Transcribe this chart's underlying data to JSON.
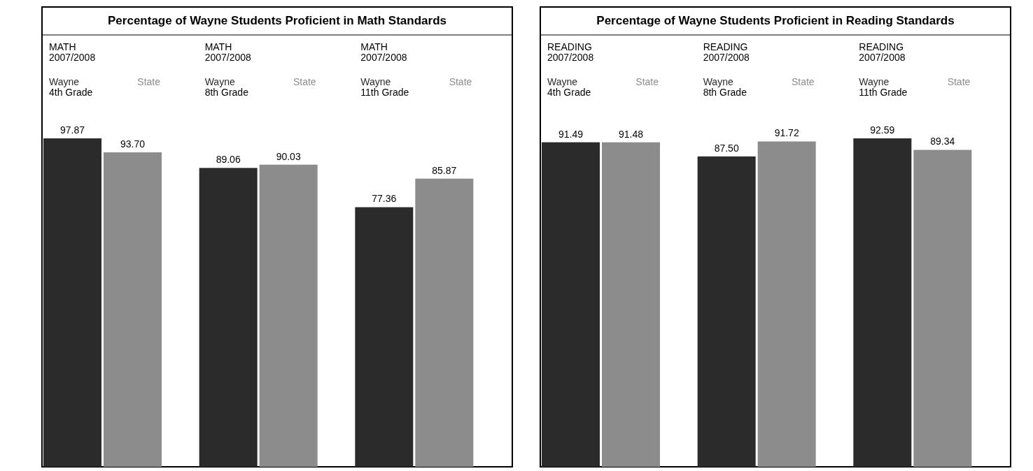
{
  "chart_data": [
    {
      "type": "bar",
      "title": "Percentage of Wayne Students Proficient in Math Standards",
      "categories": [
        "4th Grade",
        "8th Grade",
        "11th Grade"
      ],
      "series": [
        {
          "name": "Wayne",
          "color": "#2b2b2b",
          "values": [
            97.87,
            89.06,
            77.36
          ],
          "value_labels": [
            "97.87",
            "89.06",
            "77.36"
          ]
        },
        {
          "name": "State",
          "color": "#8c8c8c",
          "values": [
            93.7,
            90.03,
            85.87
          ],
          "value_labels": [
            "93.70",
            "90.03",
            "85.87"
          ]
        }
      ],
      "annotations": [
        "MATH\n2007/2008",
        "MATH\n2007/2008",
        "MATH\n2007/2008"
      ],
      "legend": false,
      "grid": false
    },
    {
      "type": "bar",
      "title": "Percentage of Wayne Students Proficient in Reading Standards",
      "categories": [
        "4th Grade",
        "8th Grade",
        "11th Grade"
      ],
      "series": [
        {
          "name": "Wayne",
          "color": "#2b2b2b",
          "values": [
            91.49,
            87.5,
            92.59
          ],
          "value_labels": [
            "91.49",
            "87.50",
            "92.59"
          ]
        },
        {
          "name": "State",
          "color": "#8c8c8c",
          "values": [
            91.48,
            91.72,
            89.34
          ],
          "value_labels": [
            "91.48",
            "91.72",
            "89.34"
          ]
        }
      ],
      "annotations": [
        "READING\n2007/2008",
        "READING\n2007/2008",
        "READING\n2007/2008"
      ],
      "legend": false,
      "grid": false
    }
  ]
}
